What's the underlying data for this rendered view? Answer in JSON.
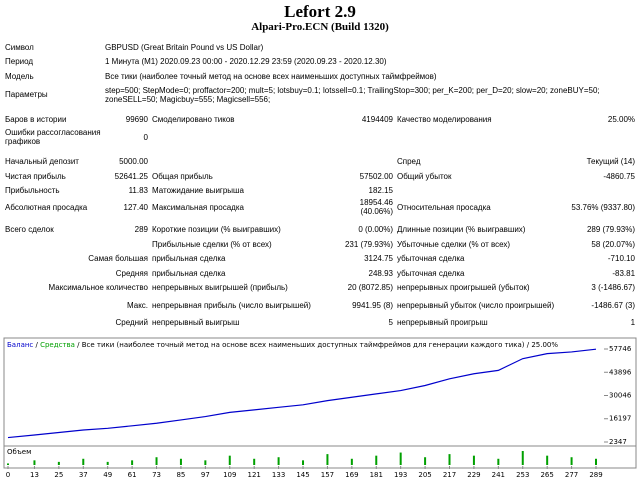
{
  "header": {
    "title": "Lefort 2.9",
    "subtitle": "Alpari-Pro.ECN (Build 1320)"
  },
  "report": {
    "rows": [
      [
        "Символ",
        "GBPUSD (Great Britain Pound vs US Dollar)"
      ],
      [
        "Период",
        "1 Минута (M1) 2020.09.23 00:00 - 2020.12.29 23:59 (2020.09.23 - 2020.12.30)"
      ],
      [
        "Модель",
        "Все тики (наиболее точный метод на основе всех наименьших доступных таймфреймов)"
      ],
      [
        "Параметры",
        "step=500; StepMode=0; proffactor=200; mult=5; lotsbuy=0.1; lotssell=0.1; TrailingStop=300; per_K=200; per_D=20; slow=20; zoneBUY=50; zoneSELL=50; Magicbuy=555; Magicsell=556;"
      ],
      [
        "Баров в истории",
        "99690",
        "Смоделировано тиков",
        "4194409",
        "Качество моделирования",
        "25.00%"
      ],
      [
        "Ошибки рассогласования графиков",
        "0"
      ],
      [
        "Начальный депозит",
        "5000.00",
        "Спред",
        "Текущий (14)"
      ],
      [
        "Чистая прибыль",
        "52641.25",
        "Общая прибыль",
        "57502.00",
        "Общий убыток",
        "-4860.75"
      ],
      [
        "Прибыльность",
        "11.83",
        "Матожидание выигрыша",
        "182.15"
      ],
      [
        "Абсолютная просадка",
        "127.40",
        "Максимальная просадка",
        "18954.46 (40.06%)",
        "Относительная просадка",
        "53.76% (9337.80)"
      ],
      [
        "Всего сделок",
        "289",
        "Короткие позиции (% выигравших)",
        "0 (0.00%)",
        "Длинные позиции (% выигравших)",
        "289 (79.93%)"
      ],
      [
        "Прибыльные сделки (% от всех)",
        "231 (79.93%)",
        "Убыточные сделки (% от всех)",
        "58 (20.07%)"
      ],
      [
        "Самая большая",
        "прибыльная сделка",
        "3124.75",
        "убыточная сделка",
        "-710.10"
      ],
      [
        "Средняя",
        "прибыльная сделка",
        "248.93",
        "убыточная сделка",
        "-83.81"
      ],
      [
        "Максимальное количество",
        "непрерывных выигрышей (прибыль)",
        "20 (8072.85)",
        "непрерывных проигрышей (убыток)",
        "3 (-1486.67)"
      ],
      [
        "Макс.",
        "непрерывная прибыль (число выигрышей)",
        "9941.95 (8)",
        "непрерывный убыток (число проигрышей)",
        "-1486.67 (3)"
      ],
      [
        "Средний",
        "непрерывный выигрыш",
        "5",
        "непрерывный проигрыш",
        "1"
      ]
    ]
  },
  "graph": {
    "type": "line",
    "subtitle": "Все тики (наиболее точный метод на основе всех наименьших доступных таймфреймов для генерации каждого тика)",
    "quality": "25.00%",
    "volume_label": "Объем",
    "x": [
      0,
      13,
      25,
      37,
      49,
      61,
      73,
      85,
      97,
      109,
      121,
      133,
      145,
      157,
      169,
      181,
      193,
      205,
      217,
      229,
      241,
      253,
      265,
      277,
      289
    ],
    "series": [
      {
        "name": "Баланс",
        "color": "#0000cc",
        "values": [
          5000,
          6500,
          8000,
          9500,
          10500,
          12000,
          13500,
          15500,
          17500,
          20000,
          21500,
          23000,
          24500,
          27000,
          29000,
          31000,
          33000,
          36000,
          40000,
          43000,
          45000,
          52000,
          55000,
          56000,
          57641
        ]
      },
      {
        "name": "Средства",
        "color": "#00a000"
      }
    ],
    "volume": [
      1,
      3,
      2,
      4,
      2,
      3,
      5,
      4,
      3,
      6,
      4,
      5,
      3,
      7,
      4,
      6,
      8,
      5,
      7,
      6,
      4,
      9,
      6,
      5,
      4
    ],
    "volume_color": "#00a000",
    "xlim": [
      0,
      289
    ],
    "xticks": [
      0,
      13,
      25,
      37,
      49,
      61,
      73,
      85,
      97,
      109,
      121,
      133,
      145,
      157,
      169,
      181,
      193,
      205,
      217,
      229,
      241,
      253,
      265,
      277,
      289
    ],
    "ylim": [
      2347,
      57746
    ],
    "yticks": [
      2347,
      16197,
      30046,
      43896,
      57746
    ]
  }
}
